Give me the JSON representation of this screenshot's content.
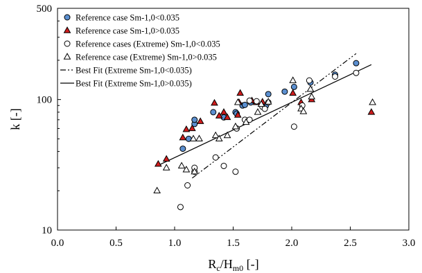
{
  "chart_data": {
    "type": "scatter",
    "xlabel": {
      "main": "R",
      "sub1": "c",
      "mid": "/H",
      "sub2": "m0",
      "tail": " [-]"
    },
    "ylabel": "k [-]",
    "xlim": [
      0.0,
      3.0
    ],
    "ylim": [
      10,
      500
    ],
    "yscale": "log",
    "x_ticks": [
      0.0,
      0.5,
      1.0,
      1.5,
      2.0,
      2.5,
      3.0
    ],
    "x_tick_labels": [
      "0.0",
      "0.5",
      "1.0",
      "1.5",
      "2.0",
      "2.5",
      "3.0"
    ],
    "y_ticks": [
      10,
      100,
      500
    ],
    "y_tick_labels": [
      "10",
      "100",
      "500"
    ],
    "legend_position": "top-left",
    "series": [
      {
        "name": "Reference case Sm-1,0<0.035",
        "marker": "circle",
        "fill": "#5b8fd0",
        "stroke": "#000000",
        "points": [
          [
            1.07,
            42
          ],
          [
            1.12,
            50
          ],
          [
            1.17,
            65
          ],
          [
            1.17,
            70
          ],
          [
            1.33,
            80
          ],
          [
            1.42,
            73
          ],
          [
            1.52,
            80
          ],
          [
            1.53,
            78
          ],
          [
            1.58,
            90
          ],
          [
            1.6,
            91
          ],
          [
            1.65,
            95
          ],
          [
            1.78,
            90
          ],
          [
            1.8,
            110
          ],
          [
            1.94,
            115
          ],
          [
            2.02,
            125
          ],
          [
            2.16,
            135
          ],
          [
            2.37,
            155
          ],
          [
            2.55,
            190
          ]
        ]
      },
      {
        "name": "Reference case Sm-1,0>0.035",
        "marker": "triangle",
        "fill": "#d01c1c",
        "stroke": "#000000",
        "points": [
          [
            0.86,
            32
          ],
          [
            0.93,
            35
          ],
          [
            1.07,
            51
          ],
          [
            1.1,
            59
          ],
          [
            1.15,
            60
          ],
          [
            1.22,
            68
          ],
          [
            1.34,
            94
          ],
          [
            1.38,
            75
          ],
          [
            1.42,
            80
          ],
          [
            1.45,
            73
          ],
          [
            1.54,
            76
          ],
          [
            1.55,
            95
          ],
          [
            1.56,
            112
          ],
          [
            1.66,
            98
          ],
          [
            1.7,
            95
          ],
          [
            1.75,
            96
          ],
          [
            2.01,
            112
          ],
          [
            2.08,
            95
          ],
          [
            2.17,
            100
          ],
          [
            2.68,
            80
          ]
        ]
      },
      {
        "name": "Reference cases (Extreme) Sm-1,0<0.035",
        "marker": "circle",
        "fill": "#ffffff",
        "stroke": "#000000",
        "points": [
          [
            1.05,
            15
          ],
          [
            1.11,
            22
          ],
          [
            1.17,
            28
          ],
          [
            1.17,
            30
          ],
          [
            1.35,
            36
          ],
          [
            1.42,
            31
          ],
          [
            1.52,
            28
          ],
          [
            1.53,
            60
          ],
          [
            1.6,
            70
          ],
          [
            1.64,
            70
          ],
          [
            1.64,
            98
          ],
          [
            1.7,
            97
          ],
          [
            1.75,
            88
          ],
          [
            1.77,
            85
          ],
          [
            1.8,
            95
          ],
          [
            2.02,
            62
          ],
          [
            2.09,
            90
          ],
          [
            2.15,
            140
          ],
          [
            2.37,
            150
          ],
          [
            2.55,
            160
          ]
        ]
      },
      {
        "name": "Reference case (Extreme) Sm-1,0>0.035",
        "marker": "triangle",
        "fill": "#ffffff",
        "stroke": "#000000",
        "points": [
          [
            0.85,
            20
          ],
          [
            0.93,
            30
          ],
          [
            1.06,
            31
          ],
          [
            1.1,
            29
          ],
          [
            1.16,
            50
          ],
          [
            1.17,
            28
          ],
          [
            1.21,
            50
          ],
          [
            1.35,
            53
          ],
          [
            1.38,
            50
          ],
          [
            1.45,
            53
          ],
          [
            1.52,
            62
          ],
          [
            1.54,
            95
          ],
          [
            1.61,
            67
          ],
          [
            1.71,
            80
          ],
          [
            1.74,
            92
          ],
          [
            1.8,
            96
          ],
          [
            2.01,
            140
          ],
          [
            2.08,
            85
          ],
          [
            2.1,
            81
          ],
          [
            2.16,
            120
          ],
          [
            2.17,
            105
          ],
          [
            2.69,
            95
          ]
        ]
      },
      {
        "name": "Best Fit (Extreme Sm-1,0<0.035)",
        "type": "line",
        "dash": "dash-dot-dot",
        "points": [
          [
            1.15,
            25
          ],
          [
            2.55,
            225
          ]
        ]
      },
      {
        "name": "Best Fit (Extreme  Sm-1,0>0.035)",
        "type": "line",
        "dash": "solid",
        "points": [
          [
            0.85,
            31
          ],
          [
            2.68,
            185
          ]
        ]
      }
    ]
  }
}
